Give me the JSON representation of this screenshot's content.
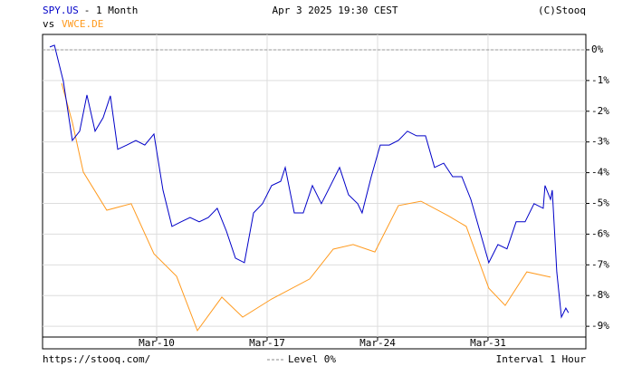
{
  "chart_data": {
    "type": "line",
    "title": "- 1 Month",
    "subtitle": "vs",
    "date": "Apr 3 2025 19:30 CEST",
    "credit": "(C)Stooq",
    "source": "https://stooq.com/",
    "interval": "Interval 1 Hour",
    "reference_line": {
      "value": 0,
      "label": "Level 0%"
    },
    "grid": true,
    "xlim": [
      -0.23,
      34.2
    ],
    "xticks": [
      {
        "value": 7,
        "label": "Mar-10"
      },
      {
        "value": 14,
        "label": "Mar-17"
      },
      {
        "value": 21,
        "label": "Mar-24"
      },
      {
        "value": 28,
        "label": "Mar-31"
      }
    ],
    "ylim": [
      -9.35,
      0.5
    ],
    "yticks": [
      {
        "value": 0,
        "label": "0%"
      },
      {
        "value": -1,
        "label": "-1%"
      },
      {
        "value": -2,
        "label": "-2%"
      },
      {
        "value": -3,
        "label": "-3%"
      },
      {
        "value": -4,
        "label": "-4%"
      },
      {
        "value": -5,
        "label": "-5%"
      },
      {
        "value": -6,
        "label": "-6%"
      },
      {
        "value": -7,
        "label": "-7%"
      },
      {
        "value": -8,
        "label": "-8%"
      },
      {
        "value": -9,
        "label": "-9%"
      }
    ],
    "series": [
      {
        "name": "SPY.US",
        "color": "#0000c8",
        "x": [
          0.23,
          0.52,
          1.09,
          1.66,
          2.12,
          2.58,
          3.1,
          3.61,
          4.07,
          4.53,
          5.11,
          5.68,
          6.25,
          6.83,
          7.4,
          7.97,
          8.55,
          9.12,
          9.7,
          10.27,
          10.84,
          11.42,
          11.99,
          12.56,
          13.14,
          13.71,
          14.29,
          14.86,
          15.15,
          15.72,
          16.29,
          16.87,
          17.44,
          18.02,
          18.59,
          19.16,
          19.74,
          20.02,
          20.6,
          21.17,
          21.74,
          22.32,
          22.89,
          23.47,
          24.04,
          24.61,
          25.19,
          25.76,
          26.34,
          26.91,
          27.48,
          28.05,
          28.63,
          29.2,
          29.78,
          30.35,
          30.92,
          31.5,
          31.61,
          31.96,
          32.07,
          32.36,
          32.65,
          32.93,
          33.1
        ],
        "values": [
          0.09,
          0.15,
          -1.03,
          -2.95,
          -2.65,
          -1.47,
          -2.65,
          -2.21,
          -1.5,
          -3.24,
          -3.1,
          -2.95,
          -3.1,
          -2.74,
          -4.57,
          -5.75,
          -5.6,
          -5.46,
          -5.6,
          -5.46,
          -5.16,
          -5.9,
          -6.78,
          -6.93,
          -5.31,
          -5.01,
          -4.42,
          -4.28,
          -3.83,
          -5.31,
          -5.31,
          -4.42,
          -5.01,
          -4.42,
          -3.83,
          -4.72,
          -5.01,
          -5.31,
          -4.13,
          -3.1,
          -3.1,
          -2.95,
          -2.65,
          -2.8,
          -2.8,
          -3.83,
          -3.69,
          -4.13,
          -4.13,
          -4.87,
          -5.9,
          -6.93,
          -6.34,
          -6.48,
          -5.6,
          -5.6,
          -5.01,
          -5.16,
          -4.42,
          -4.87,
          -4.57,
          -7.23,
          -8.7,
          -8.41,
          -8.56
        ]
      },
      {
        "name": "VWCE.DE",
        "color": "#ff9a1e",
        "x": [
          0.98,
          1.66,
          2.35,
          3.84,
          5.39,
          6.83,
          8.26,
          9.58,
          11.13,
          12.45,
          14.29,
          16.7,
          18.19,
          19.45,
          20.83,
          22.32,
          23.75,
          25.47,
          26.62,
          28.05,
          29.09,
          30.46,
          31.96
        ],
        "values": [
          -1.09,
          -2.36,
          -3.98,
          -5.22,
          -5.01,
          -6.64,
          -7.37,
          -9.14,
          -8.05,
          -8.7,
          -8.11,
          -7.46,
          -6.49,
          -6.34,
          -6.58,
          -5.07,
          -4.93,
          -5.4,
          -5.75,
          -7.76,
          -8.32,
          -7.23,
          -7.4
        ]
      }
    ]
  }
}
